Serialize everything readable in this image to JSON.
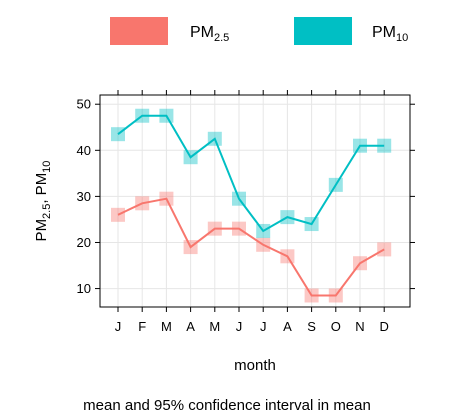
{
  "chart_data": {
    "type": "line",
    "categories": [
      "J",
      "F",
      "M",
      "A",
      "M",
      "J",
      "J",
      "A",
      "S",
      "O",
      "N",
      "D"
    ],
    "series": [
      {
        "name": "PM2.5",
        "color": "#f8766d",
        "values": [
          26,
          28.5,
          29.5,
          19,
          23,
          23,
          19.5,
          17,
          8.5,
          8.5,
          15.5,
          18.5
        ]
      },
      {
        "name": "PM10",
        "color": "#00bfc4",
        "values": [
          43.5,
          47.5,
          47.5,
          38.5,
          42.5,
          29.5,
          22.5,
          25.5,
          24,
          32.5,
          41,
          41
        ]
      }
    ],
    "ylim": [
      6,
      52
    ],
    "yticks": [
      10,
      20,
      30,
      40,
      50
    ],
    "xlabel": "month",
    "ylabel": "PM2.5, PM10",
    "caption": "mean and 95% confidence interval in mean",
    "grid": true,
    "legend_position": "top"
  },
  "legend": [
    {
      "main": "PM",
      "sub": "2.5"
    },
    {
      "main": "PM",
      "sub": "10"
    }
  ],
  "ylabel_parts": {
    "a_main": "PM",
    "a_sub": "2.5",
    "sep": ", ",
    "b_main": "PM",
    "b_sub": "10"
  }
}
